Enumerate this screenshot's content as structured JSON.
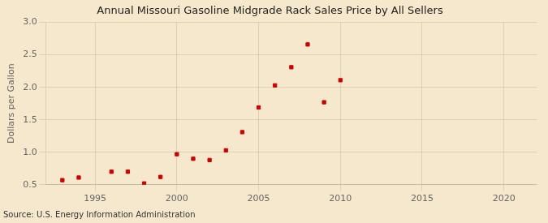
{
  "chart_data": {
    "type": "scatter",
    "title": "Annual Missouri Gasoline Midgrade Rack Sales Price by All Sellers",
    "y_label": "Dollars per Gallon",
    "annotation": "Source: U.S. Energy Information Administration",
    "x": [
      1993,
      1994,
      1996,
      1997,
      1998,
      1999,
      2000,
      2001,
      2002,
      2003,
      2004,
      2005,
      2006,
      2007,
      2008,
      2009,
      2010
    ],
    "values": [
      0.57,
      0.61,
      0.7,
      0.7,
      0.52,
      0.62,
      0.97,
      0.9,
      0.88,
      1.03,
      1.31,
      1.69,
      2.03,
      2.31,
      2.66,
      1.77,
      2.11
    ],
    "color": "#cc0000",
    "marker": "square",
    "xlim": [
      1992,
      2022
    ],
    "xticks": [
      1995,
      2000,
      2005,
      2010,
      2015,
      2020
    ],
    "ylim": [
      0.5,
      3.0
    ],
    "yticks": [
      0.5,
      {
        "value": 1.0,
        "label": "1.0"
      },
      1.5,
      {
        "value": 2.0,
        "label": "2.0"
      },
      2.5,
      {
        "value": 3.0,
        "label": "3.0"
      }
    ],
    "grid": true
  }
}
